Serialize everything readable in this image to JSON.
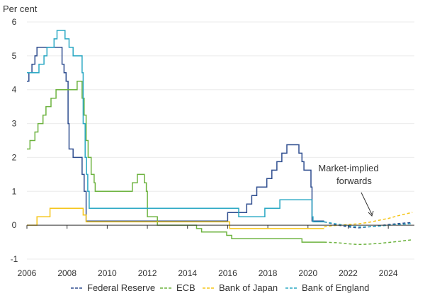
{
  "chart_data": {
    "type": "line",
    "ylabel": "Per cent",
    "xlim": [
      2006,
      2025.3
    ],
    "ylim": [
      -1,
      6
    ],
    "x_ticks": [
      2006,
      2008,
      2010,
      2012,
      2014,
      2016,
      2018,
      2020,
      2022,
      2024
    ],
    "y_ticks": [
      -1,
      0,
      1,
      2,
      3,
      4,
      5,
      6
    ],
    "grid": "horizontal",
    "legend_position": "bottom",
    "annotation": {
      "lines": [
        "Market-implied",
        "forwards"
      ],
      "x": 2023,
      "y": 0.25
    },
    "series": [
      {
        "name": "Federal Reserve",
        "color": "#2e4d8f",
        "step": true,
        "points": [
          [
            2006.0,
            4.25
          ],
          [
            2006.1,
            4.5
          ],
          [
            2006.25,
            4.75
          ],
          [
            2006.4,
            5.0
          ],
          [
            2006.5,
            5.25
          ],
          [
            2007.7,
            5.25
          ],
          [
            2007.75,
            4.75
          ],
          [
            2007.85,
            4.5
          ],
          [
            2007.95,
            4.25
          ],
          [
            2008.05,
            3.0
          ],
          [
            2008.1,
            2.25
          ],
          [
            2008.3,
            2.0
          ],
          [
            2008.75,
            1.5
          ],
          [
            2008.85,
            1.0
          ],
          [
            2008.95,
            0.125
          ],
          [
            2015.95,
            0.125
          ],
          [
            2016.0,
            0.375
          ],
          [
            2016.95,
            0.625
          ],
          [
            2017.2,
            0.875
          ],
          [
            2017.45,
            1.125
          ],
          [
            2017.95,
            1.375
          ],
          [
            2018.2,
            1.625
          ],
          [
            2018.45,
            1.875
          ],
          [
            2018.7,
            2.125
          ],
          [
            2018.95,
            2.375
          ],
          [
            2019.55,
            2.125
          ],
          [
            2019.7,
            1.875
          ],
          [
            2019.8,
            1.625
          ],
          [
            2020.15,
            1.125
          ],
          [
            2020.2,
            0.125
          ],
          [
            2020.8,
            0.125
          ]
        ],
        "forward_points": [
          [
            2020.8,
            0.1
          ],
          [
            2021.5,
            0.0
          ],
          [
            2022.0,
            -0.05
          ],
          [
            2022.5,
            -0.08
          ],
          [
            2023.0,
            -0.05
          ],
          [
            2023.5,
            -0.02
          ],
          [
            2024.0,
            0.02
          ],
          [
            2024.5,
            0.05
          ],
          [
            2025.2,
            0.08
          ]
        ]
      },
      {
        "name": "ECB",
        "color": "#6db33f",
        "step": true,
        "points": [
          [
            2006.0,
            2.25
          ],
          [
            2006.15,
            2.5
          ],
          [
            2006.4,
            2.75
          ],
          [
            2006.55,
            3.0
          ],
          [
            2006.8,
            3.25
          ],
          [
            2006.95,
            3.5
          ],
          [
            2007.2,
            3.75
          ],
          [
            2007.45,
            4.0
          ],
          [
            2008.5,
            4.25
          ],
          [
            2008.75,
            3.75
          ],
          [
            2008.85,
            3.25
          ],
          [
            2008.95,
            2.5
          ],
          [
            2009.05,
            2.0
          ],
          [
            2009.2,
            1.5
          ],
          [
            2009.35,
            1.25
          ],
          [
            2009.4,
            1.0
          ],
          [
            2011.25,
            1.25
          ],
          [
            2011.5,
            1.5
          ],
          [
            2011.85,
            1.25
          ],
          [
            2011.95,
            1.0
          ],
          [
            2012.0,
            0.25
          ],
          [
            2012.5,
            0.0
          ],
          [
            2014.45,
            -0.1
          ],
          [
            2014.7,
            -0.2
          ],
          [
            2015.95,
            -0.3
          ],
          [
            2016.2,
            -0.4
          ],
          [
            2019.7,
            -0.5
          ],
          [
            2020.8,
            -0.5
          ]
        ],
        "forward_points": [
          [
            2020.8,
            -0.5
          ],
          [
            2021.5,
            -0.52
          ],
          [
            2022.0,
            -0.55
          ],
          [
            2022.5,
            -0.57
          ],
          [
            2023.0,
            -0.56
          ],
          [
            2023.5,
            -0.54
          ],
          [
            2024.0,
            -0.51
          ],
          [
            2024.5,
            -0.48
          ],
          [
            2025.2,
            -0.43
          ]
        ]
      },
      {
        "name": "Bank of Japan",
        "color": "#f5c518",
        "step": true,
        "points": [
          [
            2006.0,
            0.0
          ],
          [
            2006.5,
            0.25
          ],
          [
            2007.15,
            0.5
          ],
          [
            2008.8,
            0.3
          ],
          [
            2008.95,
            0.1
          ],
          [
            2016.05,
            0.1
          ],
          [
            2016.1,
            -0.1
          ],
          [
            2020.8,
            -0.1
          ]
        ],
        "forward_points": [
          [
            2020.8,
            -0.05
          ],
          [
            2021.5,
            0.0
          ],
          [
            2022.0,
            0.02
          ],
          [
            2022.5,
            0.04
          ],
          [
            2023.0,
            0.08
          ],
          [
            2023.5,
            0.14
          ],
          [
            2024.0,
            0.2
          ],
          [
            2024.5,
            0.28
          ],
          [
            2025.2,
            0.38
          ]
        ]
      },
      {
        "name": "Bank of England",
        "color": "#2aa8c4",
        "step": true,
        "points": [
          [
            2006.0,
            4.5
          ],
          [
            2006.6,
            4.75
          ],
          [
            2006.85,
            5.0
          ],
          [
            2007.0,
            5.25
          ],
          [
            2007.35,
            5.5
          ],
          [
            2007.5,
            5.75
          ],
          [
            2007.9,
            5.5
          ],
          [
            2008.1,
            5.25
          ],
          [
            2008.3,
            5.0
          ],
          [
            2008.75,
            4.5
          ],
          [
            2008.8,
            3.0
          ],
          [
            2008.9,
            2.0
          ],
          [
            2008.97,
            1.5
          ],
          [
            2009.03,
            1.0
          ],
          [
            2009.1,
            0.5
          ],
          [
            2016.55,
            0.25
          ],
          [
            2017.85,
            0.5
          ],
          [
            2018.6,
            0.75
          ],
          [
            2020.2,
            0.25
          ],
          [
            2020.25,
            0.1
          ],
          [
            2020.8,
            0.1
          ]
        ],
        "forward_points": [
          [
            2020.8,
            0.1
          ],
          [
            2021.5,
            0.03
          ],
          [
            2022.0,
            -0.02
          ],
          [
            2022.5,
            -0.05
          ],
          [
            2023.0,
            -0.05
          ],
          [
            2023.5,
            -0.03
          ],
          [
            2024.0,
            0.0
          ],
          [
            2024.5,
            0.02
          ],
          [
            2025.2,
            0.05
          ]
        ]
      }
    ]
  }
}
